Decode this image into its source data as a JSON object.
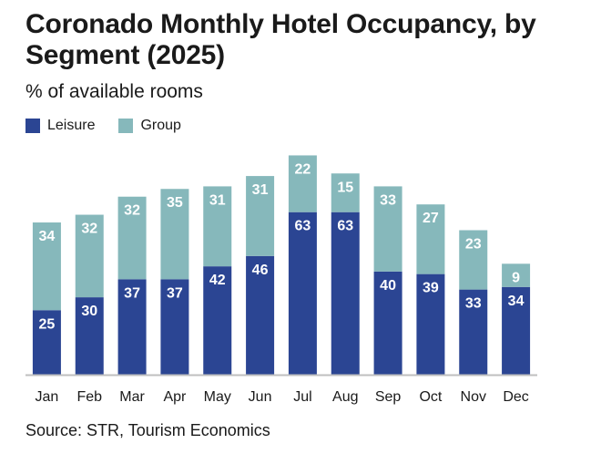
{
  "title": "Coronado Monthly Hotel Occupancy, by Segment (2025)",
  "subtitle": "% of available rooms",
  "source": "Source: STR, Tourism Economics",
  "colors": {
    "leisure": "#2b4593",
    "group": "#86b8bb",
    "axis": "#bfbfbf",
    "label": "#ffffff"
  },
  "chart_data": {
    "type": "bar",
    "stacked": true,
    "title": "Coronado Monthly Hotel Occupancy, by Segment (2025)",
    "subtitle": "% of available rooms",
    "categories": [
      "Jan",
      "Feb",
      "Mar",
      "Apr",
      "May",
      "Jun",
      "Jul",
      "Aug",
      "Sep",
      "Oct",
      "Nov",
      "Dec"
    ],
    "series": [
      {
        "name": "Leisure",
        "values": [
          25,
          30,
          37,
          37,
          42,
          46,
          63,
          63,
          40,
          39,
          33,
          34
        ]
      },
      {
        "name": "Group",
        "values": [
          34,
          32,
          32,
          35,
          31,
          31,
          22,
          15,
          33,
          27,
          23,
          9
        ]
      }
    ],
    "ylim": [
      0,
      90
    ],
    "grid": false,
    "legend": "top-left"
  }
}
